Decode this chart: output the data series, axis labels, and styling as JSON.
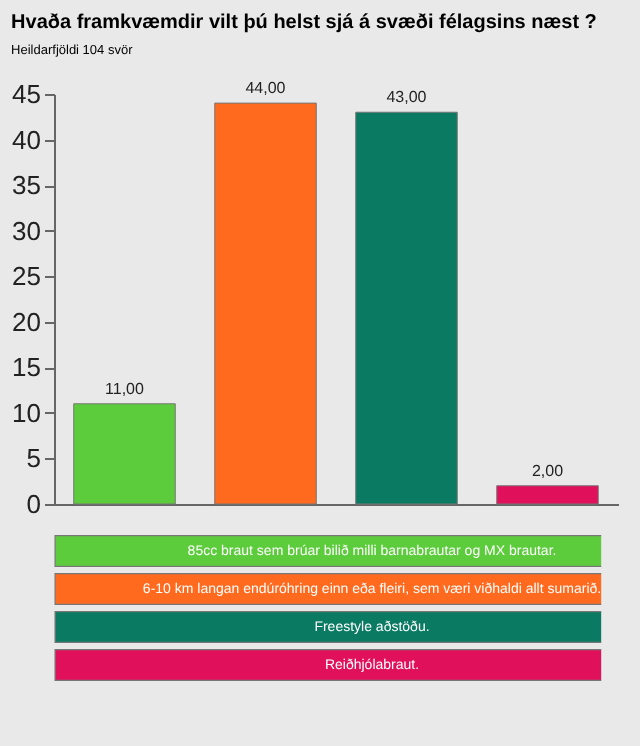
{
  "chart_data": {
    "type": "bar",
    "title": "Hvaða framkvæmdir vilt þú helst sjá á svæði félagsins næst ?",
    "subtitle": "Heildarfjöldi 104 svör",
    "categories": [
      null
    ],
    "series": [
      {
        "name": "85cc braut sem brúar bilið milli barnabrautar og MX brautar.",
        "color": "#5ccc3c",
        "values": [
          11
        ],
        "value_labels": [
          "11,00"
        ]
      },
      {
        "name": "6-10 km langan endúróhring einn eða fleiri, sem væri viðhaldi allt sumarið.",
        "color": "#ff6a1e",
        "values": [
          44
        ],
        "value_labels": [
          "44,00"
        ]
      },
      {
        "name": "Freestyle aðstöðu.",
        "color": "#0a7a62",
        "values": [
          43
        ],
        "value_labels": [
          "43,00"
        ]
      },
      {
        "name": "Reiðhjólabraut.",
        "color": "#e0105a",
        "values": [
          2
        ],
        "value_labels": [
          "2,00"
        ]
      }
    ],
    "ylim": [
      0,
      45
    ],
    "yticks": [
      0,
      5,
      10,
      15,
      20,
      25,
      30,
      35,
      40,
      45
    ],
    "tick_labels": "y",
    "legend": "bottom",
    "grid": false
  }
}
